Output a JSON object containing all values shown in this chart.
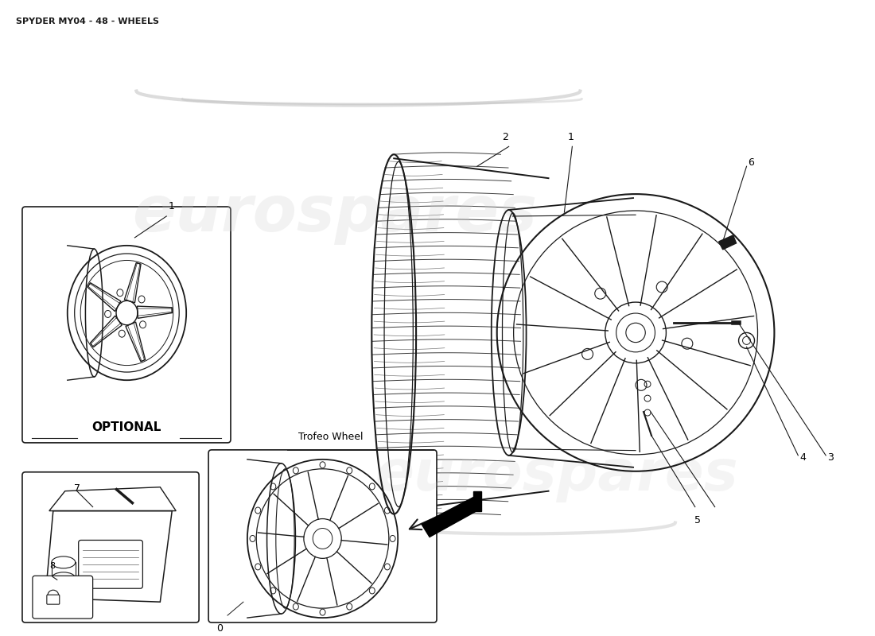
{
  "title": "SPYDER MY04 - 48 - WHEELS",
  "title_fontsize": 8,
  "bg_color": "#ffffff",
  "line_color": "#1a1a1a",
  "watermark_text": "eurospares",
  "optional_label": "OPTIONAL",
  "trofeo_label": "Trofeo Wheel",
  "fig_w": 11.0,
  "fig_h": 8.0
}
